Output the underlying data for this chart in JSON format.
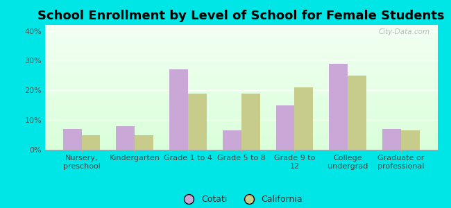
{
  "title": "School Enrollment by Level of School for Female Students",
  "categories": [
    "Nursery,\npreschool",
    "Kindergarten",
    "Grade 1 to 4",
    "Grade 5 to 8",
    "Grade 9 to\n12",
    "College\nundergrad",
    "Graduate or\nprofessional"
  ],
  "cotati": [
    7.0,
    8.0,
    27.0,
    6.5,
    15.0,
    29.0,
    7.0
  ],
  "california": [
    5.0,
    5.0,
    19.0,
    19.0,
    21.0,
    25.0,
    6.5
  ],
  "cotati_color": "#c9a8d8",
  "california_color": "#c8cc8a",
  "background_color": "#00e5e5",
  "ylim": [
    0,
    42
  ],
  "yticks": [
    0,
    10,
    20,
    30,
    40
  ],
  "ytick_labels": [
    "0%",
    "10%",
    "20%",
    "30%",
    "40%"
  ],
  "bar_width": 0.35,
  "title_fontsize": 13,
  "tick_fontsize": 8,
  "legend_fontsize": 9,
  "watermark": "City-Data.com"
}
